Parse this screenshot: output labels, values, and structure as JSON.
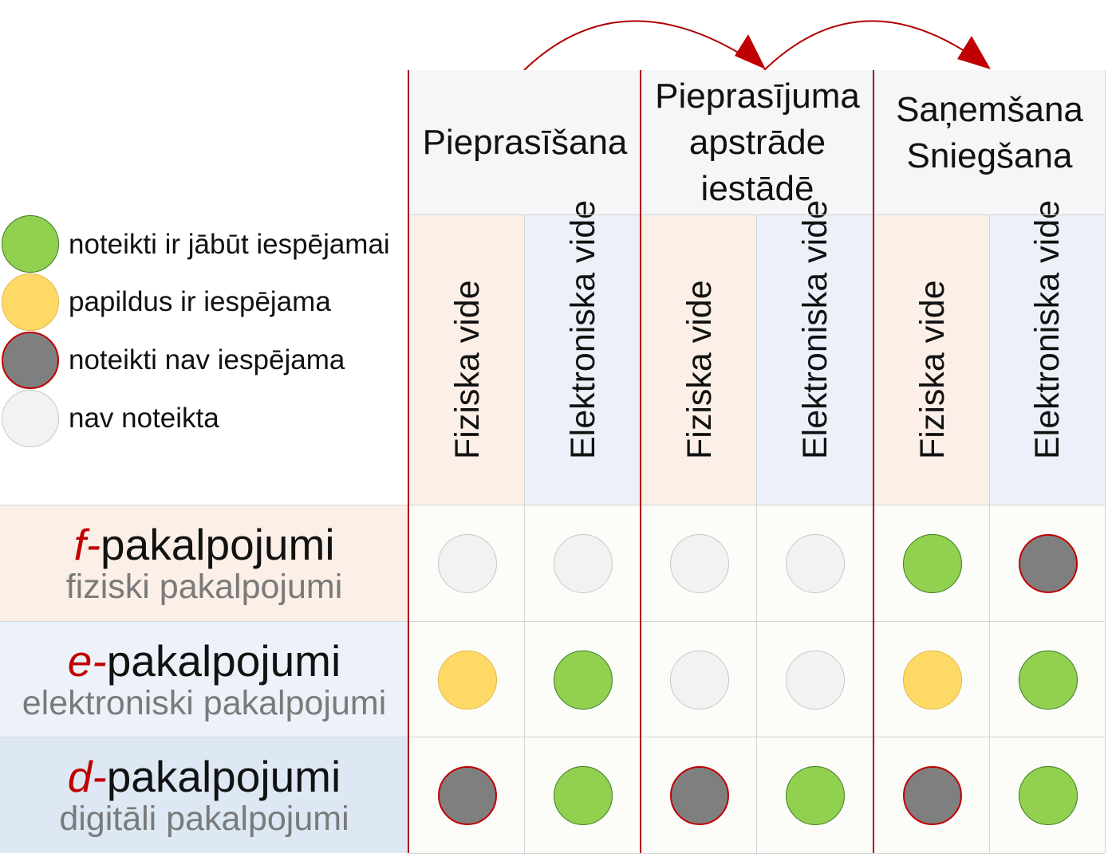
{
  "legend": [
    {
      "label": "noteikti ir jābūt iespējamai",
      "status": "must",
      "fill": "#92d050",
      "stroke": "#3b7d1f"
    },
    {
      "label": "papildus ir iespējama",
      "status": "optional",
      "fill": "#ffd966",
      "stroke": "#e0b94a"
    },
    {
      "label": "noteikti nav iespējama",
      "status": "impossible",
      "fill": "#7f7f7f",
      "stroke": "#c00000"
    },
    {
      "label": "nav noteikta",
      "status": "undefined",
      "fill": "#f2f2f2",
      "stroke": "#c8c8c8"
    }
  ],
  "phases": [
    {
      "label": "Pieprasīšana"
    },
    {
      "label": "Pieprasījuma\napstrāde\niestādē"
    },
    {
      "label": "Saņemšana\nSniegšana"
    }
  ],
  "environments": [
    {
      "label": "Fiziska vide",
      "kind": "fiz"
    },
    {
      "label": "Elektroniska vide",
      "kind": "el"
    },
    {
      "label": "Fiziska vide",
      "kind": "fiz"
    },
    {
      "label": "Elektroniska vide",
      "kind": "el"
    },
    {
      "label": "Fiziska vide",
      "kind": "fiz"
    },
    {
      "label": "Elektroniska vide",
      "kind": "el"
    }
  ],
  "rows": [
    {
      "prefix": "f-",
      "title": "pakalpojumi",
      "subtitle": "fiziski pakalpojumi",
      "bg": "#fbefe7",
      "cells": [
        "undefined",
        "undefined",
        "undefined",
        "undefined",
        "must",
        "impossible"
      ]
    },
    {
      "prefix": "e-",
      "title": "pakalpojumi",
      "subtitle": "elektroniski pakalpojumi",
      "bg": "#edf2fa",
      "cells": [
        "optional",
        "must",
        "undefined",
        "undefined",
        "optional",
        "must"
      ]
    },
    {
      "prefix": "d-",
      "title": "pakalpojumi",
      "subtitle": "digitāli pakalpojumi",
      "bg": "#dde8f4",
      "cells": [
        "impossible",
        "must",
        "impossible",
        "must",
        "impossible",
        "must"
      ]
    }
  ],
  "colors": {
    "accent": "#c00000",
    "header_bg": "#f5f6f7",
    "grid": "#d4d4d4"
  }
}
